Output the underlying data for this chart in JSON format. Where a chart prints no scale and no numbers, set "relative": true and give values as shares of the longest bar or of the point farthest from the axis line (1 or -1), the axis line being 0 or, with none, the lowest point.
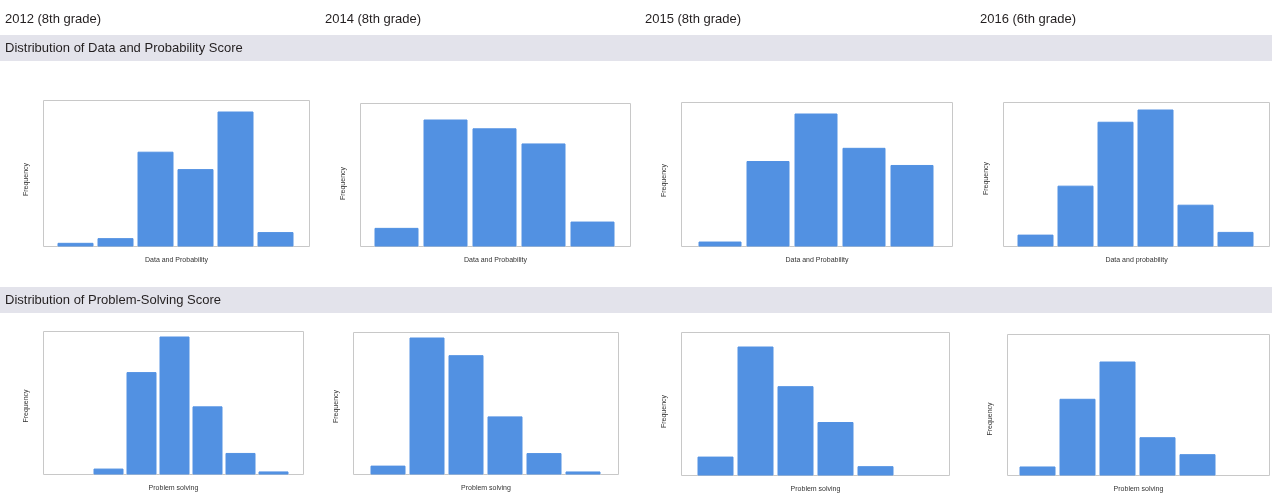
{
  "chart_data": [
    {
      "type": "bar",
      "title": "2012 (8th grade)",
      "subtitle": "Distribution of Data and Probability Score",
      "xlabel": "Data and Probability",
      "ylabel": "Frequency",
      "categories": [
        null,
        null,
        null,
        null,
        null,
        null
      ],
      "values": [
        0.02,
        0.055,
        0.7,
        0.57,
        1,
        0.1
      ],
      "color": "#5291e2",
      "relative": true
    },
    {
      "type": "bar",
      "title": "2014 (8th grade)",
      "xlabel": "Data and Probability",
      "ylabel": "Frequency",
      "categories": [
        null,
        null,
        null,
        null,
        null
      ],
      "values": [
        0.14,
        1,
        0.93,
        0.81,
        0.19
      ],
      "color": "#5291e2",
      "relative": true
    },
    {
      "type": "bar",
      "title": "2015 (8th grade)",
      "xlabel": "Data and Probability",
      "ylabel": "Frequency",
      "categories": [
        null,
        null,
        null,
        null,
        null
      ],
      "values": [
        0.03,
        0.64,
        1,
        0.74,
        0.61
      ],
      "color": "#5291e2",
      "relative": true
    },
    {
      "type": "bar",
      "title": "2016 (6th grade)",
      "xlabel": "Data and probability",
      "ylabel": "Frequency",
      "categories": [
        null,
        null,
        null,
        null,
        null,
        null
      ],
      "values": [
        0.08,
        0.44,
        0.91,
        1,
        0.3,
        0.1
      ],
      "color": "#5291e2",
      "relative": true
    },
    {
      "type": "bar",
      "title": "Distribution of Problem-Solving Score",
      "xlabel": "Problem solving",
      "ylabel": "Frequency",
      "categories": [
        null,
        null,
        null,
        null,
        null,
        null
      ],
      "values": [
        0.036,
        0.74,
        1,
        0.49,
        0.15,
        0.015
      ],
      "color": "#5291e2",
      "relative": true
    },
    {
      "type": "bar",
      "xlabel": "Problem solving",
      "ylabel": "Frequency",
      "categories": [
        null,
        null,
        null,
        null,
        null,
        null
      ],
      "values": [
        0.058,
        1,
        0.87,
        0.42,
        0.15,
        0.015
      ],
      "color": "#5291e2",
      "relative": true
    },
    {
      "type": "bar",
      "xlabel": "Problem solving",
      "ylabel": "Frequency",
      "categories": [
        null,
        null,
        null,
        null,
        null
      ],
      "values": [
        0.14,
        1,
        0.69,
        0.41,
        0.065
      ],
      "color": "#5291e2",
      "relative": true
    },
    {
      "type": "bar",
      "xlabel": "Problem solving",
      "ylabel": "Frequency",
      "categories": [
        null,
        null,
        null,
        null,
        null,
        null
      ],
      "values": [
        0.071,
        0.67,
        1,
        0.33,
        0.18,
        null
      ],
      "color": "#5291e2",
      "relative": true
    }
  ]
}
